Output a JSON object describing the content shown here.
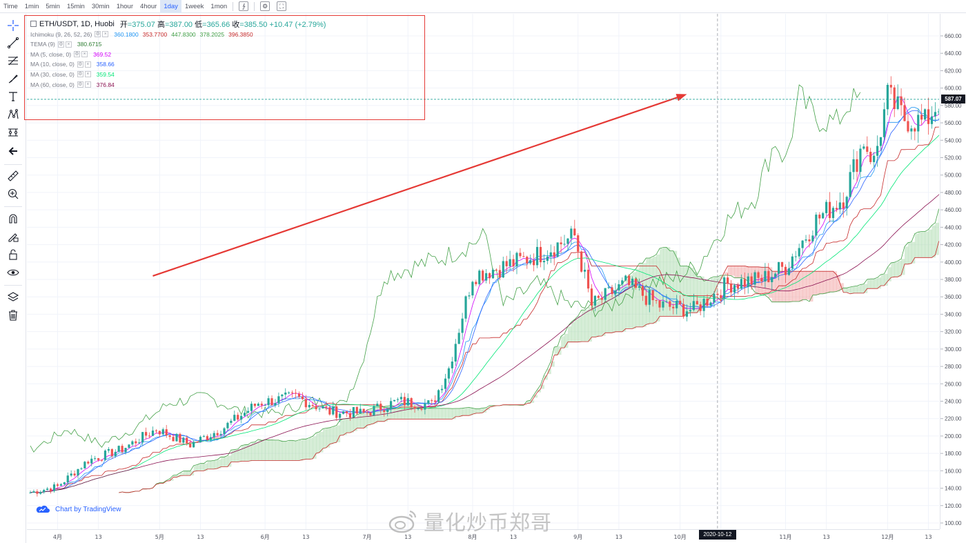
{
  "topbar": {
    "timeframes": [
      "Time",
      "1min",
      "5min",
      "15min",
      "30min",
      "1hour",
      "4hour",
      "1day",
      "1week",
      "1mon"
    ],
    "active_timeframe": "1day"
  },
  "legend": {
    "symbol": "ETH/USDT, 1D, Huobi",
    "open_label": "开",
    "open": "375.07",
    "high_label": "高",
    "high": "387.00",
    "low_label": "低",
    "low": "365.66",
    "close_label": "收",
    "close": "385.50",
    "change": "+10.47 (+2.79%)",
    "indicators": [
      {
        "name": "Ichimoku (9, 26, 52, 26)",
        "values": [
          "360.1800",
          "353.7700",
          "447.8300",
          "378.2025",
          "396.3850"
        ],
        "colors": [
          "#2196f3",
          "#c62828",
          "#43a047",
          "#43a047",
          "#c62828"
        ]
      },
      {
        "name": "TEMA (9)",
        "values": [
          "380.6715"
        ],
        "colors": [
          "#2e7d32"
        ]
      },
      {
        "name": "MA (5, close, 0)",
        "values": [
          "369.52"
        ],
        "colors": [
          "#d500f9"
        ]
      },
      {
        "name": "MA (10, close, 0)",
        "values": [
          "358.66"
        ],
        "colors": [
          "#2962ff"
        ]
      },
      {
        "name": "MA (30, close, 0)",
        "values": [
          "359.54"
        ],
        "colors": [
          "#00e676"
        ]
      },
      {
        "name": "MA (60, close, 0)",
        "values": [
          "376.84"
        ],
        "colors": [
          "#880e4f"
        ]
      }
    ]
  },
  "price_axis": {
    "current_price": "587.07",
    "ticks": [
      "660.00",
      "640.00",
      "620.00",
      "600.00",
      "580.00",
      "560.00",
      "540.00",
      "520.00",
      "500.00",
      "480.00",
      "460.00",
      "440.00",
      "420.00",
      "400.00",
      "380.00",
      "360.00",
      "340.00",
      "320.00",
      "300.00",
      "280.00",
      "260.00",
      "240.00",
      "220.00",
      "200.00",
      "180.00",
      "160.00",
      "140.00",
      "120.00",
      "100.00"
    ]
  },
  "time_axis": {
    "labels": [
      "4月",
      "13",
      "5月",
      "13",
      "6月",
      "13",
      "7月",
      "13",
      "8月",
      "13",
      "9月",
      "13",
      "10月",
      "13",
      "11月",
      "13",
      "12月",
      "13"
    ],
    "crosshair_date": "2020-10-12"
  },
  "badge": {
    "text": "Chart by TradingView"
  },
  "watermark": {
    "text": "量化炒币郑哥"
  },
  "chart_data": {
    "type": "candlestick",
    "symbol": "ETH/USDT",
    "interval": "1D",
    "exchange": "Huobi",
    "ylim": [
      100,
      660
    ],
    "x_range": [
      "2020-03-24",
      "2020-12-19"
    ],
    "colors": {
      "up": "#26a69a",
      "down": "#ef5350",
      "cloud_bull": "#a5d6a7",
      "cloud_bear": "#ef9a9a",
      "arrow": "#e53935"
    },
    "close_series": {
      "x": [
        "2020-03-24",
        "2020-04-01",
        "2020-04-10",
        "2020-04-20",
        "2020-04-30",
        "2020-05-10",
        "2020-05-20",
        "2020-05-30",
        "2020-06-10",
        "2020-06-20",
        "2020-06-30",
        "2020-07-10",
        "2020-07-20",
        "2020-07-25",
        "2020-08-01",
        "2020-08-10",
        "2020-08-20",
        "2020-08-31",
        "2020-09-05",
        "2020-09-15",
        "2020-09-25",
        "2020-10-05",
        "2020-10-15",
        "2020-10-25",
        "2020-11-01",
        "2020-11-10",
        "2020-11-18",
        "2020-11-24",
        "2020-11-27",
        "2020-12-01",
        "2020-12-06",
        "2020-12-12",
        "2020-12-16"
      ],
      "values": [
        135,
        142,
        172,
        185,
        208,
        190,
        210,
        238,
        245,
        228,
        226,
        240,
        236,
        278,
        385,
        395,
        408,
        430,
        350,
        375,
        350,
        345,
        375,
        380,
        395,
        448,
        475,
        540,
        515,
        590,
        565,
        560,
        585
      ]
    },
    "annotation": {
      "type": "arrow",
      "from": [
        "2020-04-29",
        384
      ],
      "to": [
        "2020-10-03",
        593
      ],
      "color": "#e53935"
    }
  }
}
